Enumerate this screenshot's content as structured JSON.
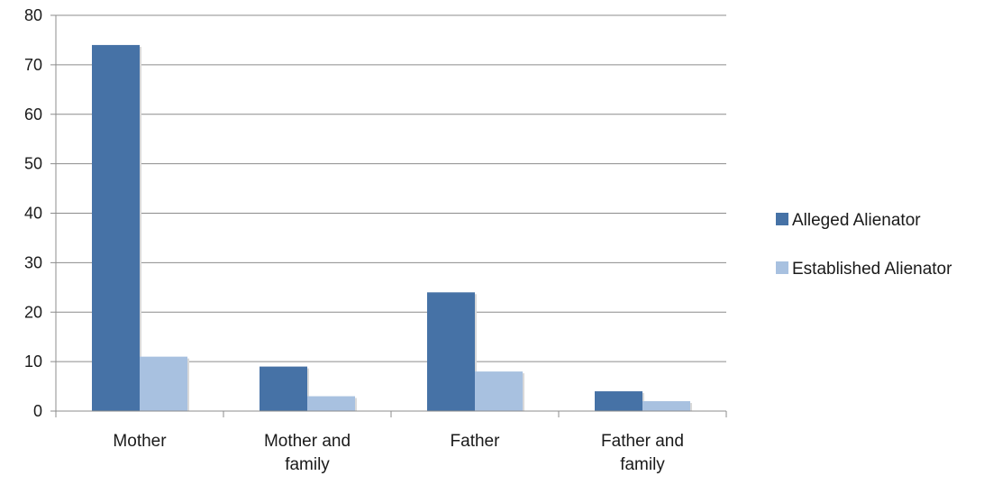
{
  "chart_data": {
    "type": "bar",
    "categories": [
      [
        "Mother"
      ],
      [
        "Mother and",
        "family"
      ],
      [
        "Father"
      ],
      [
        "Father and",
        "family"
      ]
    ],
    "series": [
      {
        "name": "Alleged Alienator",
        "values": [
          74,
          9,
          24,
          4
        ],
        "color": "#4672a6"
      },
      {
        "name": "Established Alienator",
        "values": [
          11,
          3,
          8,
          2
        ],
        "color": "#a8c1e0"
      }
    ],
    "ylim": [
      0,
      80
    ],
    "yticks": [
      0,
      10,
      20,
      30,
      40,
      50,
      60,
      70,
      80
    ],
    "grid": true,
    "legend": "right"
  }
}
